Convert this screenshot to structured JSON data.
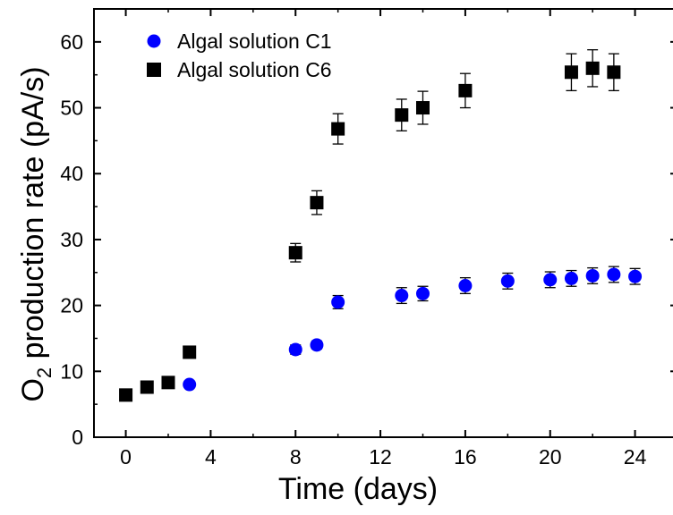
{
  "chart_data": {
    "type": "scatter",
    "title": "",
    "xlabel": "Time (days)",
    "ylabel": {
      "prefix": "O",
      "subscript": "2",
      "suffix": " production rate (pA/s)"
    },
    "xlim": [
      -1.5,
      26
    ],
    "ylim": [
      0,
      65
    ],
    "xticks": [
      0,
      4,
      8,
      12,
      16,
      20,
      24
    ],
    "yticks": [
      0,
      10,
      20,
      30,
      40,
      50,
      60
    ],
    "legend_position": "top-left",
    "grid": false,
    "series": [
      {
        "name": "Algal solution C1",
        "marker": "circle",
        "color": "#0000ff",
        "points": [
          {
            "x": 3,
            "y": 8.0,
            "err": 0.5
          },
          {
            "x": 8,
            "y": 13.3,
            "err": 0.7
          },
          {
            "x": 9,
            "y": 14.0,
            "err": 0.6
          },
          {
            "x": 10,
            "y": 20.5,
            "err": 1.0
          },
          {
            "x": 13,
            "y": 21.5,
            "err": 1.2
          },
          {
            "x": 14,
            "y": 21.8,
            "err": 1.1
          },
          {
            "x": 16,
            "y": 23.0,
            "err": 1.2
          },
          {
            "x": 18,
            "y": 23.7,
            "err": 1.2
          },
          {
            "x": 20,
            "y": 23.9,
            "err": 1.2
          },
          {
            "x": 21,
            "y": 24.1,
            "err": 1.2
          },
          {
            "x": 22,
            "y": 24.5,
            "err": 1.2
          },
          {
            "x": 23,
            "y": 24.7,
            "err": 1.2
          },
          {
            "x": 24,
            "y": 24.4,
            "err": 1.2
          }
        ]
      },
      {
        "name": "Algal solution C6",
        "marker": "square",
        "color": "#000000",
        "points": [
          {
            "x": 0,
            "y": 6.4,
            "err": 0.5
          },
          {
            "x": 1,
            "y": 7.6,
            "err": 0.5
          },
          {
            "x": 2,
            "y": 8.3,
            "err": 0.5
          },
          {
            "x": 3,
            "y": 12.9,
            "err": 0.6
          },
          {
            "x": 8,
            "y": 28.0,
            "err": 1.4
          },
          {
            "x": 9,
            "y": 35.6,
            "err": 1.8
          },
          {
            "x": 10,
            "y": 46.8,
            "err": 2.3
          },
          {
            "x": 13,
            "y": 48.9,
            "err": 2.4
          },
          {
            "x": 14,
            "y": 50.0,
            "err": 2.5
          },
          {
            "x": 16,
            "y": 52.6,
            "err": 2.6
          },
          {
            "x": 21,
            "y": 55.4,
            "err": 2.8
          },
          {
            "x": 22,
            "y": 56.0,
            "err": 2.8
          },
          {
            "x": 23,
            "y": 55.4,
            "err": 2.8
          }
        ]
      }
    ]
  }
}
